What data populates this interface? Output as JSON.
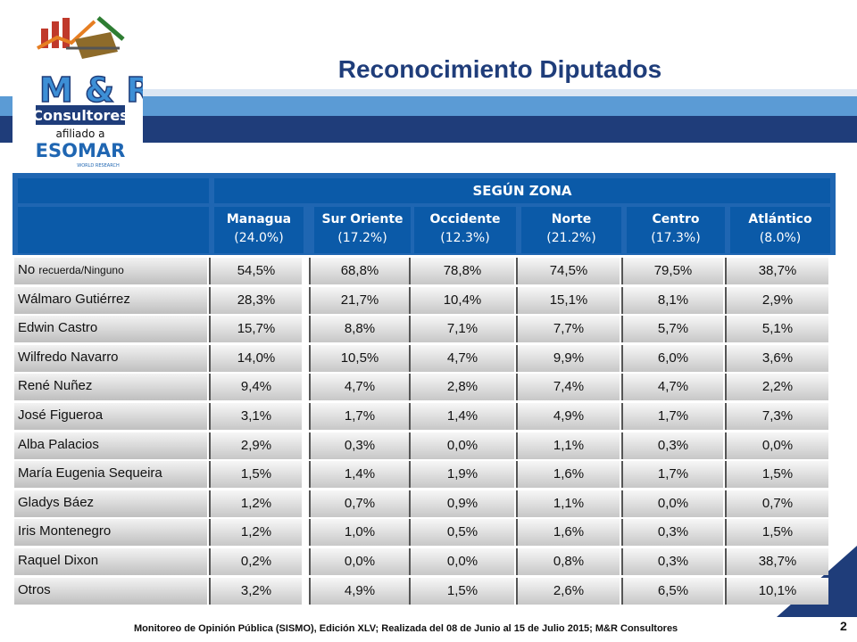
{
  "brand": {
    "name": "M & R",
    "subtitle": "Consultores",
    "affiliation": "afiliado a",
    "partner": "ESOMAR",
    "partner_sub": "WORLD RESEARCH"
  },
  "title": "Reconocimiento Diputados",
  "table": {
    "group_header": "SEGÚN ZONA",
    "columns": [
      {
        "name": "Managua",
        "pct": "(24.0%)"
      },
      {
        "name": "Sur Oriente",
        "pct": "(17.2%)"
      },
      {
        "name": "Occidente",
        "pct": "(12.3%)"
      },
      {
        "name": "Norte",
        "pct": "(21.2%)"
      },
      {
        "name": "Centro",
        "pct": "(17.3%)"
      },
      {
        "name": "Atlántico",
        "pct": "(8.0%)"
      }
    ],
    "rows": [
      {
        "label_a": "No ",
        "label_b": "recuerda/Ninguno",
        "values": [
          "54,5%",
          "68,8%",
          "78,8%",
          "74,5%",
          "79,5%",
          "38,7%"
        ]
      },
      {
        "label": "Wálmaro Gutiérrez",
        "values": [
          "28,3%",
          "21,7%",
          "10,4%",
          "15,1%",
          "8,1%",
          "2,9%"
        ]
      },
      {
        "label": "Edwin Castro",
        "values": [
          "15,7%",
          "8,8%",
          "7,1%",
          "7,7%",
          "5,7%",
          "5,1%"
        ]
      },
      {
        "label": "Wilfredo Navarro",
        "values": [
          "14,0%",
          "10,5%",
          "4,7%",
          "9,9%",
          "6,0%",
          "3,6%"
        ]
      },
      {
        "label": "René Nuñez",
        "values": [
          "9,4%",
          "4,7%",
          "2,8%",
          "7,4%",
          "4,7%",
          "2,2%"
        ]
      },
      {
        "label": "José Figueroa",
        "values": [
          "3,1%",
          "1,7%",
          "1,4%",
          "4,9%",
          "1,7%",
          "7,3%"
        ]
      },
      {
        "label": "Alba Palacios",
        "values": [
          "2,9%",
          "0,3%",
          "0,0%",
          "1,1%",
          "0,3%",
          "0,0%"
        ]
      },
      {
        "label": "María Eugenia Sequeira",
        "values": [
          "1,5%",
          "1,4%",
          "1,9%",
          "1,6%",
          "1,7%",
          "1,5%"
        ]
      },
      {
        "label": "Gladys Báez",
        "values": [
          "1,2%",
          "0,7%",
          "0,9%",
          "1,1%",
          "0,0%",
          "0,7%"
        ]
      },
      {
        "label": "Iris Montenegro",
        "values": [
          "1,2%",
          "1,0%",
          "0,5%",
          "1,6%",
          "0,3%",
          "1,5%"
        ]
      },
      {
        "label": "Raquel Dixon",
        "values": [
          "0,2%",
          "0,0%",
          "0,0%",
          "0,8%",
          "0,3%",
          "38,7%"
        ]
      },
      {
        "label": "Otros",
        "values": [
          "3,2%",
          "4,9%",
          "1,5%",
          "2,6%",
          "6,5%",
          "10,1%"
        ]
      }
    ]
  },
  "footer": "Monitoreo de Opinión Pública (SISMO), Edición XLV; Realizada del 08 de Junio al 15 de Julio 2015; M&R Consultores",
  "page_number": "2",
  "colors": {
    "brand_blue": "#1f3d7a",
    "header_blue": "#0b5aa8",
    "accent_light": "#5b9bd5"
  }
}
